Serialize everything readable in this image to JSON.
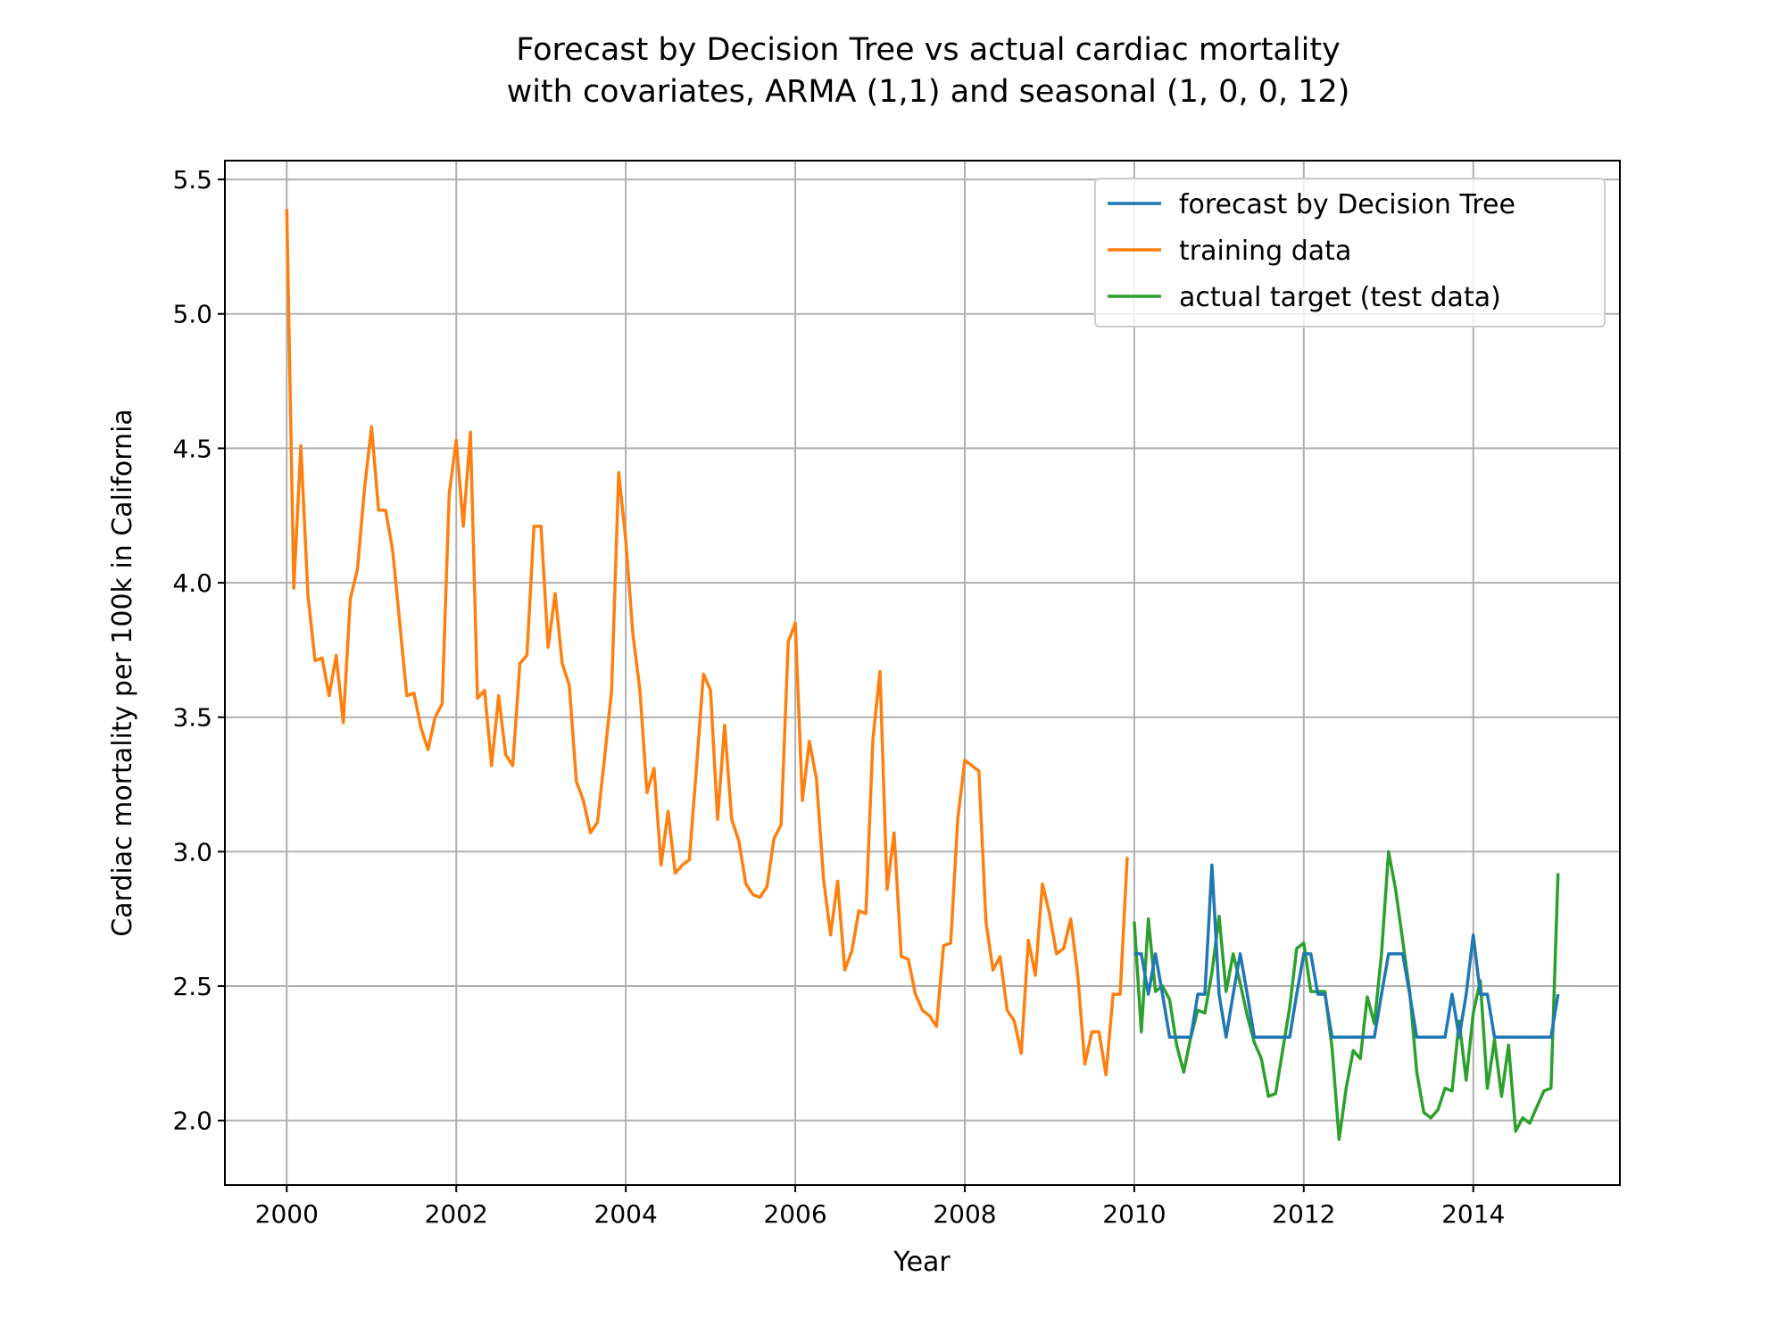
{
  "chart_data": {
    "type": "line",
    "title": [
      "Forecast by Decision Tree vs actual cardiac mortality",
      "with covariates, ARMA (1,1) and seasonal (1, 0, 0, 12)"
    ],
    "xlabel": "Year",
    "ylabel": "Cardiac mortality per 100k in California",
    "xlim": [
      1999.27,
      2015.73
    ],
    "ylim": [
      1.76,
      5.57
    ],
    "xticks": [
      2000,
      2002,
      2004,
      2006,
      2008,
      2010,
      2012,
      2014
    ],
    "xtick_labels": [
      "2000",
      "2002",
      "2004",
      "2006",
      "2008",
      "2010",
      "2012",
      "2014"
    ],
    "yticks": [
      2.0,
      2.5,
      3.0,
      3.5,
      4.0,
      4.5,
      5.0,
      5.5
    ],
    "ytick_labels": [
      "2.0",
      "2.5",
      "3.0",
      "3.5",
      "4.0",
      "4.5",
      "5.0",
      "5.5"
    ],
    "grid": true,
    "legend_position": "top-right",
    "series": [
      {
        "name": "forecast by Decision Tree",
        "color": "#1f77b4",
        "x_start": 2010.0,
        "x_step": 0.0833333,
        "values": [
          2.62,
          2.62,
          2.47,
          2.62,
          2.47,
          2.31,
          2.31,
          2.31,
          2.31,
          2.47,
          2.47,
          2.95,
          2.47,
          2.31,
          2.47,
          2.62,
          2.47,
          2.31,
          2.31,
          2.31,
          2.31,
          2.31,
          2.31,
          2.47,
          2.62,
          2.62,
          2.47,
          2.47,
          2.31,
          2.31,
          2.31,
          2.31,
          2.31,
          2.31,
          2.31,
          2.47,
          2.62,
          2.62,
          2.62,
          2.47,
          2.31,
          2.31,
          2.31,
          2.31,
          2.31,
          2.47,
          2.31,
          2.47,
          2.69,
          2.47,
          2.47,
          2.31,
          2.31,
          2.31,
          2.31,
          2.31,
          2.31,
          2.31,
          2.31,
          2.31,
          2.47
        ]
      },
      {
        "name": "training data",
        "color": "#ff7f0e",
        "x_start": 2000.0,
        "x_step": 0.0833333,
        "values": [
          5.39,
          3.98,
          4.51,
          3.95,
          3.71,
          3.72,
          3.58,
          3.73,
          3.48,
          3.94,
          4.05,
          4.35,
          4.58,
          4.27,
          4.27,
          4.12,
          3.85,
          3.58,
          3.59,
          3.46,
          3.38,
          3.5,
          3.55,
          4.33,
          4.53,
          4.21,
          4.56,
          3.57,
          3.6,
          3.32,
          3.58,
          3.36,
          3.32,
          3.7,
          3.73,
          4.21,
          4.21,
          3.76,
          3.96,
          3.7,
          3.62,
          3.26,
          3.19,
          3.07,
          3.11,
          3.35,
          3.6,
          4.41,
          4.16,
          3.81,
          3.6,
          3.22,
          3.31,
          2.95,
          3.15,
          2.92,
          2.95,
          2.97,
          3.31,
          3.66,
          3.6,
          3.12,
          3.47,
          3.12,
          3.04,
          2.88,
          2.84,
          2.83,
          2.87,
          3.05,
          3.1,
          3.78,
          3.85,
          3.19,
          3.41,
          3.27,
          2.9,
          2.69,
          2.89,
          2.56,
          2.63,
          2.78,
          2.77,
          3.42,
          3.67,
          2.86,
          3.07,
          2.61,
          2.6,
          2.47,
          2.41,
          2.39,
          2.35,
          2.65,
          2.66,
          3.12,
          3.34,
          3.32,
          3.3,
          2.74,
          2.56,
          2.61,
          2.41,
          2.37,
          2.25,
          2.67,
          2.54,
          2.88,
          2.77,
          2.62,
          2.64,
          2.75,
          2.54,
          2.21,
          2.33,
          2.33,
          2.17,
          2.47,
          2.47,
          2.98
        ]
      },
      {
        "name": "actual target (test data)",
        "color": "#2ca02c",
        "x_start": 2010.0,
        "x_step": 0.0833333,
        "values": [
          2.74,
          2.33,
          2.75,
          2.48,
          2.5,
          2.45,
          2.28,
          2.18,
          2.31,
          2.41,
          2.4,
          2.55,
          2.76,
          2.48,
          2.62,
          2.51,
          2.39,
          2.29,
          2.23,
          2.09,
          2.1,
          2.26,
          2.42,
          2.64,
          2.66,
          2.48,
          2.48,
          2.48,
          2.27,
          1.93,
          2.12,
          2.26,
          2.23,
          2.46,
          2.36,
          2.62,
          3.0,
          2.86,
          2.67,
          2.48,
          2.18,
          2.03,
          2.01,
          2.04,
          2.12,
          2.11,
          2.37,
          2.15,
          2.4,
          2.52,
          2.12,
          2.3,
          2.09,
          2.28,
          1.96,
          2.01,
          1.99,
          2.05,
          2.11,
          2.12,
          2.92
        ]
      }
    ]
  }
}
